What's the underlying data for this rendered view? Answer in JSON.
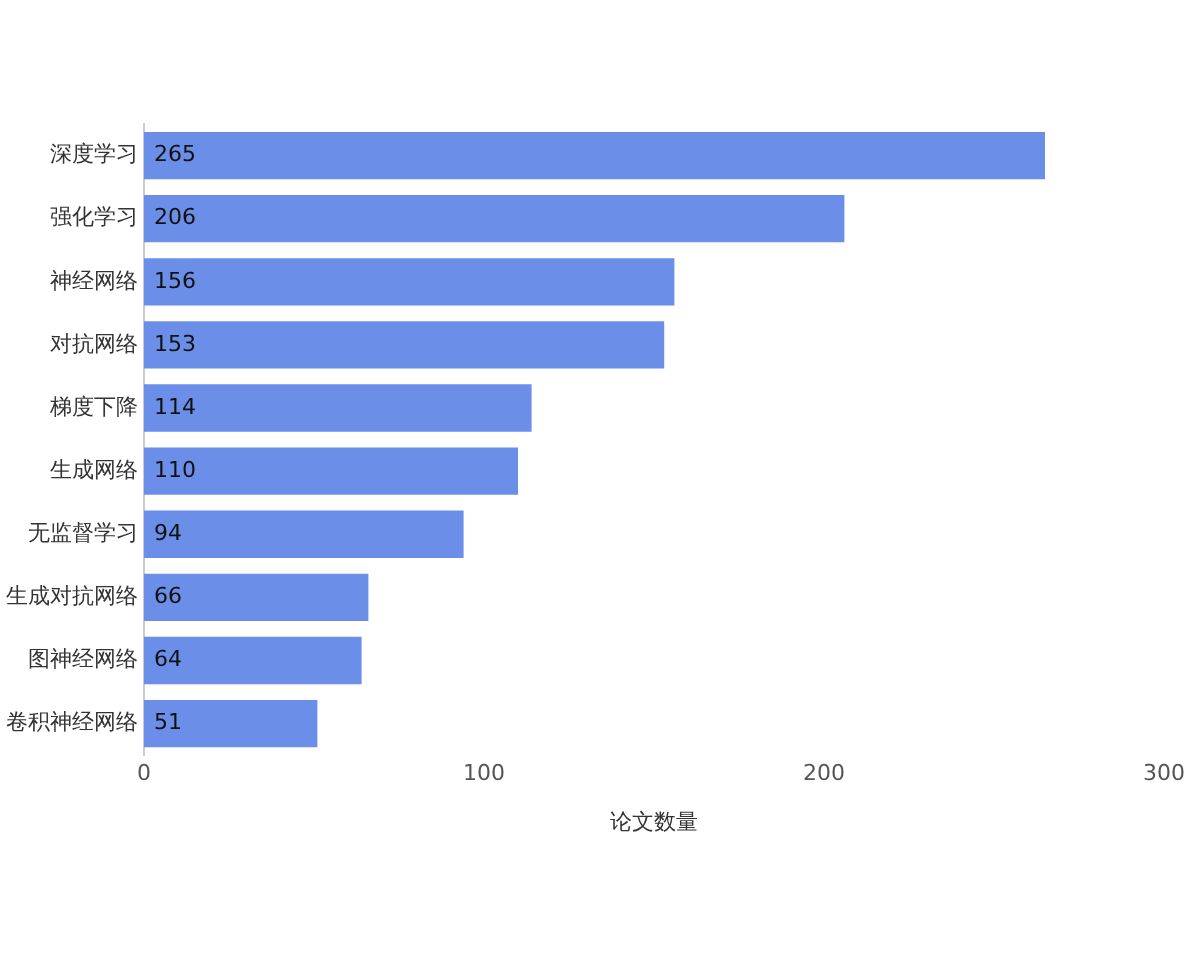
{
  "chart_data": {
    "type": "bar",
    "orientation": "horizontal",
    "xlabel": "论文数量",
    "categories": [
      "深度学习",
      "强化学习",
      "神经网络",
      "对抗网络",
      "梯度下降",
      "生成网络",
      "无监督学习",
      "生成对抗网络",
      "图神经网络",
      "卷积神经网络"
    ],
    "values": [
      265,
      206,
      156,
      153,
      114,
      110,
      94,
      66,
      64,
      51
    ],
    "color": "#6b8ee8",
    "xlim": [
      0,
      300
    ],
    "xticks": [
      0,
      100,
      200,
      300
    ],
    "grid": false,
    "data_labels": true
  }
}
